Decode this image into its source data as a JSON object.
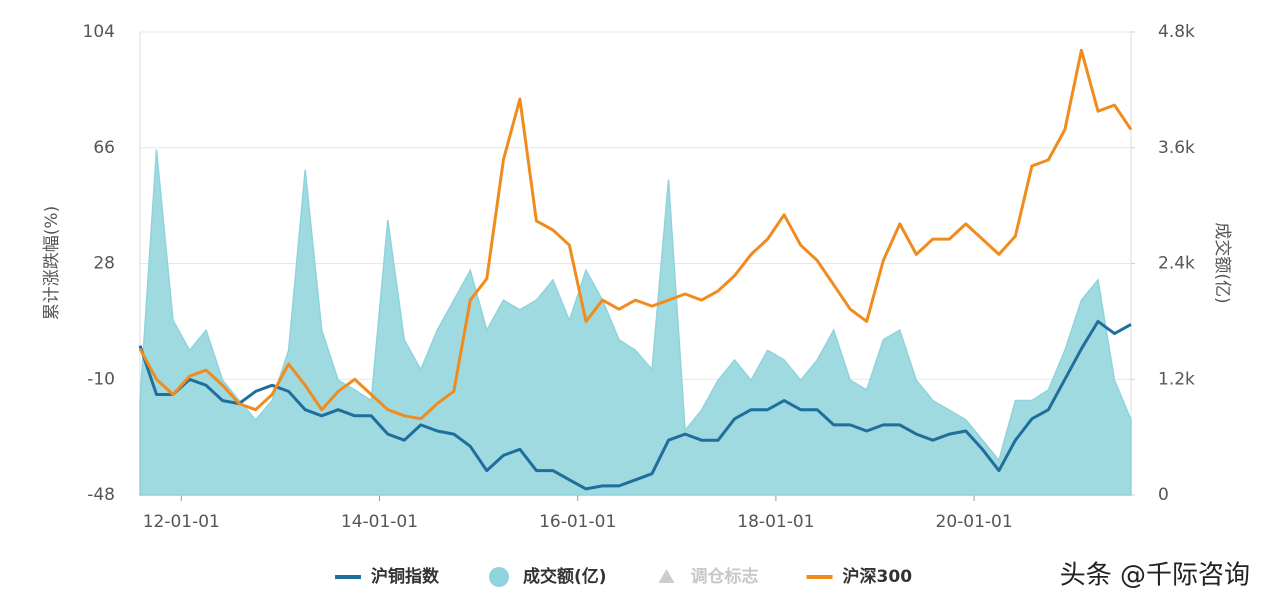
{
  "chart_data": {
    "type": "line",
    "x": [
      "11-08-01",
      "11-10-01",
      "11-12-01",
      "12-02-01",
      "12-04-01",
      "12-06-01",
      "12-08-01",
      "12-10-01",
      "12-12-01",
      "13-02-01",
      "13-04-01",
      "13-06-01",
      "13-08-01",
      "13-10-01",
      "13-12-01",
      "14-02-01",
      "14-04-01",
      "14-06-01",
      "14-08-01",
      "14-10-01",
      "14-12-01",
      "15-02-01",
      "15-04-01",
      "15-06-01",
      "15-08-01",
      "15-10-01",
      "15-12-01",
      "16-02-01",
      "16-04-01",
      "16-06-01",
      "16-08-01",
      "16-10-01",
      "16-12-01",
      "17-02-01",
      "17-04-01",
      "17-06-01",
      "17-08-01",
      "17-10-01",
      "17-12-01",
      "18-02-01",
      "18-04-01",
      "18-06-01",
      "18-08-01",
      "18-10-01",
      "18-12-01",
      "19-02-01",
      "19-04-01",
      "19-06-01",
      "19-08-01",
      "19-10-01",
      "19-12-01",
      "20-02-01",
      "20-04-01",
      "20-06-01",
      "20-08-01",
      "20-10-01",
      "20-12-01",
      "21-02-01",
      "21-04-01",
      "21-06-01",
      "21-08-01"
    ],
    "xlim": [
      "11-08-01",
      "21-08-01"
    ],
    "xticks": [
      "12-01-01",
      "14-01-01",
      "16-01-01",
      "18-01-01",
      "20-01-01"
    ],
    "ylabel": "累计涨跌幅(%)",
    "y2label": "成交额(亿)",
    "ylim": [
      -48,
      104
    ],
    "yticks": [
      -48,
      -10,
      28,
      66,
      104
    ],
    "y2lim": [
      0,
      4800
    ],
    "y2ticks": [
      0,
      {
        "value": 1200,
        "label": "1.2k"
      },
      {
        "value": 2400,
        "label": "2.4k"
      },
      {
        "value": 3600,
        "label": "3.6k"
      },
      {
        "value": 4800,
        "label": "4.8k"
      }
    ],
    "grid": true,
    "series": [
      {
        "name": "沪铜指数",
        "color": "#1f6e9c",
        "style": "line",
        "values": [
          1,
          -15,
          -15,
          -10,
          -12,
          -17,
          -18,
          -14,
          -12,
          -14,
          -20,
          -22,
          -20,
          -22,
          -22,
          -28,
          -30,
          -25,
          -27,
          -28,
          -32,
          -40,
          -35,
          -33,
          -40,
          -40,
          -43,
          -46,
          -45,
          -45,
          -43,
          -41,
          -30,
          -28,
          -30,
          -30,
          -23,
          -20,
          -20,
          -17,
          -20,
          -20,
          -25,
          -25,
          -27,
          -25,
          -25,
          -28,
          -30,
          -28,
          -27,
          -33,
          -40,
          -30,
          -23,
          -20,
          -10,
          0,
          9,
          5,
          8
        ]
      },
      {
        "name": "成交额(亿)",
        "color": "#8fd3dc",
        "style": "area",
        "axis": "y2",
        "values": [
          980,
          3580,
          1810,
          1500,
          1710,
          1190,
          980,
          780,
          980,
          1500,
          3370,
          1710,
          1190,
          1090,
          980,
          2850,
          1610,
          1300,
          1710,
          2020,
          2330,
          1710,
          2020,
          1920,
          2020,
          2230,
          1810,
          2330,
          2020,
          1610,
          1500,
          1300,
          3270,
          670,
          880,
          1190,
          1400,
          1190,
          1500,
          1400,
          1190,
          1400,
          1710,
          1190,
          1090,
          1610,
          1710,
          1190,
          980,
          880,
          780,
          570,
          360,
          980,
          980,
          1090,
          1500,
          2020,
          2230,
          1190,
          780
        ]
      },
      {
        "name": "沪深300",
        "color": "#f08c1e",
        "style": "line",
        "values": [
          0,
          -10,
          -15,
          -9,
          -7,
          -12,
          -18,
          -20,
          -15,
          -5,
          -12,
          -20,
          -14,
          -10,
          -15,
          -20,
          -22,
          -23,
          -18,
          -14,
          16,
          23,
          62,
          82,
          42,
          39,
          34,
          9,
          16,
          13,
          16,
          14,
          16,
          18,
          16,
          19,
          24,
          31,
          36,
          44,
          34,
          29,
          21,
          13,
          9,
          29,
          41,
          31,
          36,
          36,
          41,
          36,
          31,
          37,
          60,
          62,
          72,
          98,
          78,
          80,
          72
        ]
      }
    ],
    "inactive_legend": [
      {
        "name": "调仓标志",
        "color": "#cccccc"
      }
    ],
    "watermark": "头条 @千际咨询"
  }
}
